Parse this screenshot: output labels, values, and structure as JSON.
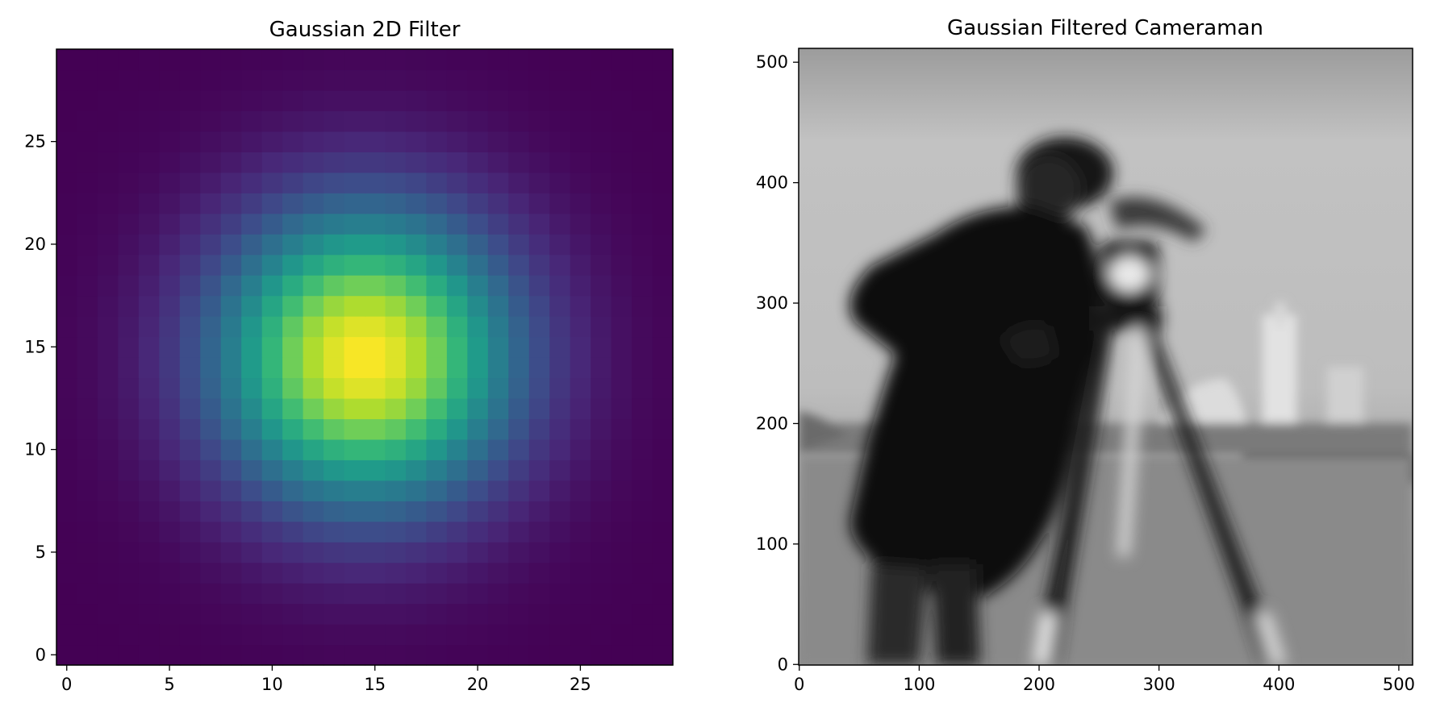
{
  "panels": [
    {
      "title": "Gaussian 2D Filter",
      "chart_data": {
        "type": "heatmap",
        "title": "Gaussian 2D Filter",
        "xlabel": "",
        "ylabel": "",
        "size": 30,
        "center": [
          14.5,
          14.5
        ],
        "sigma": 5,
        "colormap": "viridis",
        "x_range": [
          -0.5,
          29.5
        ],
        "y_range": [
          29.5,
          -0.5
        ],
        "x_ticks": [
          0,
          5,
          10,
          15,
          20,
          25
        ],
        "y_ticks": [
          0,
          5,
          10,
          15,
          20,
          25
        ],
        "grid": false
      }
    },
    {
      "title": "Gaussian Filtered Cameraman",
      "chart_data": {
        "type": "heatmap",
        "title": "Gaussian Filtered Cameraman",
        "xlabel": "",
        "ylabel": "",
        "image": "cameraman",
        "colormap": "gray",
        "x_range": [
          -0.5,
          511.5
        ],
        "y_range": [
          511.5,
          -0.5
        ],
        "x_ticks": [
          0,
          100,
          200,
          300,
          400,
          500
        ],
        "y_ticks": [
          0,
          100,
          200,
          300,
          400,
          500
        ],
        "grid": false
      }
    }
  ]
}
